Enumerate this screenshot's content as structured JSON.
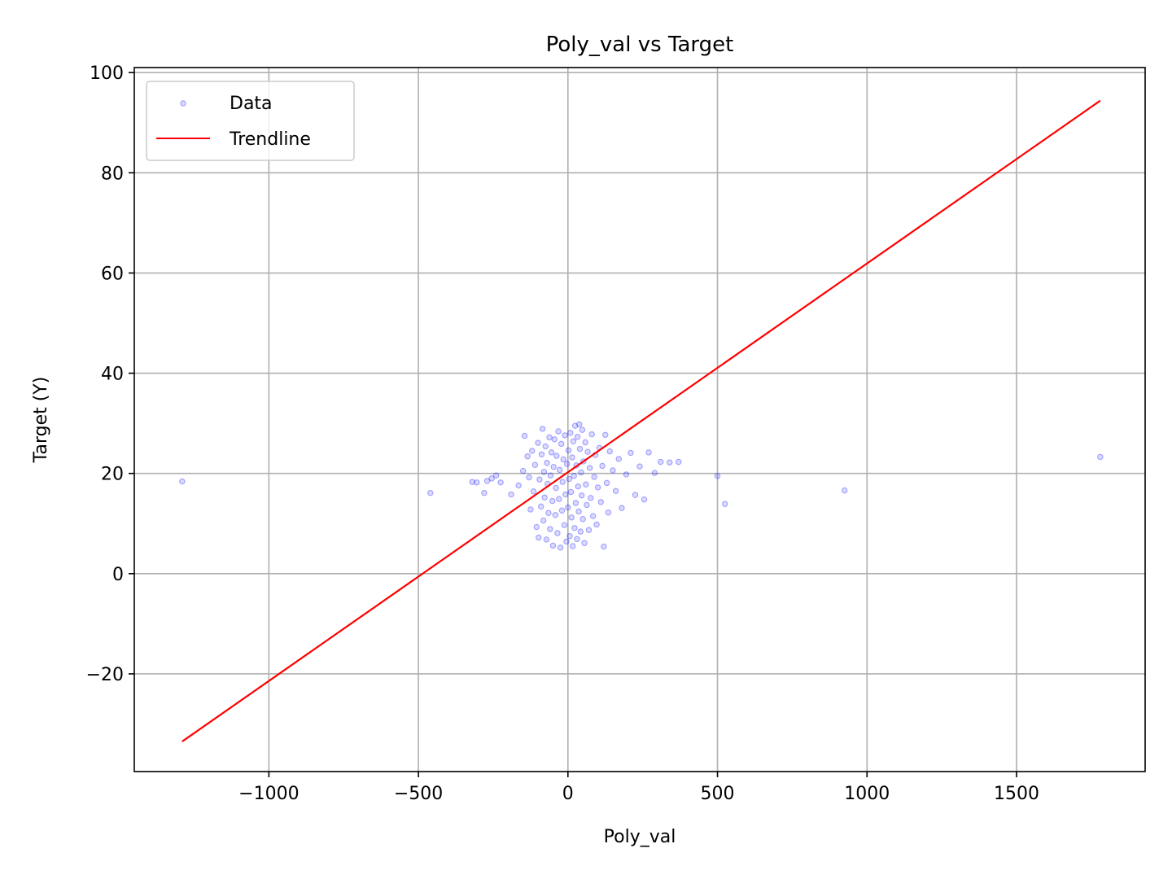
{
  "chart_data": {
    "type": "scatter",
    "title": "Poly_val vs Target",
    "xlabel": "Poly_val",
    "ylabel": "Target (Y)",
    "xlim": [
      -1450,
      1930
    ],
    "ylim": [
      -39.5,
      101
    ],
    "xticks": [
      -1000,
      -500,
      0,
      500,
      1000,
      1500
    ],
    "xtick_labels": [
      "−1000",
      "−500",
      "0",
      "500",
      "1000",
      "1500"
    ],
    "yticks": [
      -20,
      0,
      20,
      40,
      60,
      80,
      100
    ],
    "ytick_labels": [
      "−20",
      "0",
      "20",
      "40",
      "60",
      "80",
      "100"
    ],
    "grid": true,
    "legend_position": "top-left",
    "series": [
      {
        "name": "Data",
        "kind": "scatter",
        "color": "#0000ff",
        "points": [
          [
            -1290,
            18.4
          ],
          [
            -460,
            16.1
          ],
          [
            -320,
            18.3
          ],
          [
            -305,
            18.2
          ],
          [
            -280,
            16.1
          ],
          [
            -270,
            18.5
          ],
          [
            -255,
            19.0
          ],
          [
            -240,
            19.6
          ],
          [
            -225,
            18.2
          ],
          [
            -190,
            15.8
          ],
          [
            -165,
            17.6
          ],
          [
            -150,
            20.5
          ],
          [
            -145,
            27.5
          ],
          [
            -135,
            23.4
          ],
          [
            -130,
            19.2
          ],
          [
            -125,
            12.8
          ],
          [
            -120,
            24.5
          ],
          [
            -115,
            16.4
          ],
          [
            -110,
            21.7
          ],
          [
            -105,
            9.3
          ],
          [
            -100,
            26.1
          ],
          [
            -98,
            7.2
          ],
          [
            -95,
            18.8
          ],
          [
            -90,
            13.4
          ],
          [
            -88,
            23.8
          ],
          [
            -85,
            28.9
          ],
          [
            -82,
            10.6
          ],
          [
            -80,
            20.3
          ],
          [
            -78,
            15.2
          ],
          [
            -75,
            25.4
          ],
          [
            -72,
            6.8
          ],
          [
            -70,
            22.1
          ],
          [
            -68,
            17.9
          ],
          [
            -65,
            12.1
          ],
          [
            -62,
            27.2
          ],
          [
            -60,
            8.9
          ],
          [
            -58,
            19.6
          ],
          [
            -55,
            24.2
          ],
          [
            -52,
            14.5
          ],
          [
            -50,
            5.6
          ],
          [
            -48,
            21.3
          ],
          [
            -45,
            26.8
          ],
          [
            -42,
            11.7
          ],
          [
            -40,
            17.1
          ],
          [
            -38,
            23.5
          ],
          [
            -35,
            8.1
          ],
          [
            -32,
            28.4
          ],
          [
            -30,
            14.9
          ],
          [
            -28,
            20.7
          ],
          [
            -25,
            5.2
          ],
          [
            -22,
            25.9
          ],
          [
            -20,
            12.6
          ],
          [
            -18,
            18.3
          ],
          [
            -15,
            22.8
          ],
          [
            -12,
            9.7
          ],
          [
            -10,
            27.6
          ],
          [
            -8,
            15.8
          ],
          [
            -5,
            6.4
          ],
          [
            -3,
            21.9
          ],
          [
            0,
            13.2
          ],
          [
            2,
            24.6
          ],
          [
            4,
            18.9
          ],
          [
            6,
            7.5
          ],
          [
            8,
            28.1
          ],
          [
            10,
            16.3
          ],
          [
            12,
            11.2
          ],
          [
            14,
            23.2
          ],
          [
            16,
            5.5
          ],
          [
            18,
            26.4
          ],
          [
            20,
            19.5
          ],
          [
            22,
            9.1
          ],
          [
            24,
            29.5
          ],
          [
            26,
            14.1
          ],
          [
            28,
            21.6
          ],
          [
            30,
            6.9
          ],
          [
            32,
            27.3
          ],
          [
            34,
            17.4
          ],
          [
            36,
            12.4
          ],
          [
            38,
            29.8
          ],
          [
            40,
            24.9
          ],
          [
            42,
            8.4
          ],
          [
            44,
            20.2
          ],
          [
            46,
            15.6
          ],
          [
            48,
            28.7
          ],
          [
            50,
            10.9
          ],
          [
            52,
            22.4
          ],
          [
            55,
            6.1
          ],
          [
            58,
            26.2
          ],
          [
            60,
            17.8
          ],
          [
            63,
            13.7
          ],
          [
            66,
            24.3
          ],
          [
            70,
            8.7
          ],
          [
            73,
            21.1
          ],
          [
            76,
            15.1
          ],
          [
            80,
            27.8
          ],
          [
            84,
            11.5
          ],
          [
            88,
            19.3
          ],
          [
            92,
            23.7
          ],
          [
            96,
            9.8
          ],
          [
            100,
            17.2
          ],
          [
            105,
            25.1
          ],
          [
            110,
            14.3
          ],
          [
            115,
            21.5
          ],
          [
            120,
            5.4
          ],
          [
            125,
            27.7
          ],
          [
            130,
            18.1
          ],
          [
            135,
            12.2
          ],
          [
            140,
            24.4
          ],
          [
            150,
            20.6
          ],
          [
            160,
            16.5
          ],
          [
            170,
            22.9
          ],
          [
            180,
            13.1
          ],
          [
            195,
            19.8
          ],
          [
            210,
            24.1
          ],
          [
            225,
            15.7
          ],
          [
            240,
            21.4
          ],
          [
            255,
            14.8
          ],
          [
            270,
            24.2
          ],
          [
            290,
            20.1
          ],
          [
            310,
            22.3
          ],
          [
            340,
            22.2
          ],
          [
            370,
            22.3
          ],
          [
            500,
            19.5
          ],
          [
            525,
            13.9
          ],
          [
            925,
            16.6
          ],
          [
            1780,
            23.3
          ]
        ]
      },
      {
        "name": "Trendline",
        "kind": "line",
        "color": "#ff0000",
        "x": [
          -1290,
          1780
        ],
        "y": [
          -33.5,
          94.4
        ]
      }
    ]
  }
}
